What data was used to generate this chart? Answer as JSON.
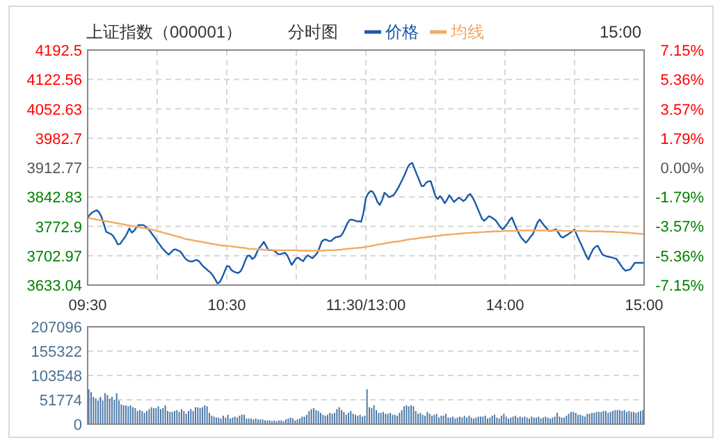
{
  "chart_data": [
    {
      "type": "line",
      "title": "上证指数（000001）",
      "subtitle": "分时图",
      "annotations": [
        "15:00"
      ],
      "legend": "top",
      "grid": true,
      "categories": [
        "09:30",
        null,
        null,
        null,
        null,
        null,
        null,
        null,
        null,
        null,
        null,
        null,
        null,
        null,
        null,
        null,
        null,
        null,
        null,
        null,
        null,
        null,
        null,
        null,
        null,
        null,
        null,
        null,
        null,
        null,
        null,
        null,
        null,
        null,
        null,
        null,
        null,
        null,
        null,
        null,
        null,
        null,
        null,
        null,
        null,
        null,
        null,
        null,
        null,
        null,
        null,
        null,
        null,
        null,
        null,
        null,
        null,
        null,
        null,
        null,
        "10:30",
        null,
        null,
        null,
        null,
        null,
        null,
        null,
        null,
        null,
        null,
        null,
        null,
        null,
        null,
        null,
        null,
        null,
        null,
        null,
        null,
        null,
        null,
        null,
        null,
        null,
        null,
        null,
        null,
        null,
        null,
        null,
        null,
        null,
        null,
        null,
        null,
        null,
        null,
        null,
        null,
        null,
        null,
        null,
        null,
        null,
        null,
        null,
        null,
        null,
        null,
        null,
        null,
        null,
        null,
        null,
        null,
        null,
        null,
        null,
        "11:30/13:00",
        null,
        null,
        null,
        null,
        null,
        null,
        null,
        null,
        null,
        null,
        null,
        null,
        null,
        null,
        null,
        null,
        null,
        null,
        null,
        null,
        null,
        null,
        null,
        null,
        null,
        null,
        null,
        null,
        null,
        null,
        null,
        null,
        null,
        null,
        null,
        null,
        null,
        null,
        null,
        null,
        null,
        null,
        null,
        null,
        null,
        null,
        null,
        null,
        null,
        null,
        null,
        null,
        null,
        null,
        null,
        null,
        null,
        null,
        null,
        "14:00",
        null,
        null,
        null,
        null,
        null,
        null,
        null,
        null,
        null,
        null,
        null,
        null,
        null,
        null,
        null,
        null,
        null,
        null,
        null,
        null,
        null,
        null,
        null,
        null,
        null,
        null,
        null,
        null,
        null,
        null,
        null,
        null,
        null,
        null,
        null,
        null,
        null,
        null,
        null,
        null,
        null,
        null,
        null,
        null,
        null,
        null,
        null,
        null,
        null,
        null,
        null,
        null,
        null,
        null,
        null,
        null,
        null,
        null,
        null,
        "15:00"
      ],
      "ylim": [
        3633.04,
        4192.5
      ],
      "yticks": [
        3633.04,
        3702.97,
        3772.9,
        3842.83,
        3912.77,
        3982.7,
        4052.63,
        4122.56,
        4192.5
      ],
      "y2lim": [
        -7.15,
        7.15
      ],
      "y2ticks": [
        {
          "value": -7.15,
          "label": "-7.15%"
        },
        {
          "value": -5.36,
          "label": "-5.36%"
        },
        {
          "value": -3.57,
          "label": "-3.57%"
        },
        {
          "value": -1.79,
          "label": "-1.79%"
        },
        {
          "value": 0,
          "label": "0.00%"
        },
        {
          "value": 1.79,
          "label": "1.79%"
        },
        {
          "value": 3.57,
          "label": "3.57%"
        },
        {
          "value": 5.36,
          "label": "5.36%"
        },
        {
          "value": 7.15,
          "label": "7.15%"
        }
      ],
      "series": [
        {
          "name": "价格",
          "color": "#1a5aa8",
          "values": [
            3793,
            3801,
            3806,
            3809,
            3811,
            3806,
            3795,
            3778,
            3760,
            3757,
            3755,
            3750,
            3741,
            3730,
            3731,
            3739,
            3746,
            3756,
            3768,
            3758,
            3762,
            3770,
            3776,
            3776,
            3776,
            3772,
            3767,
            3761,
            3753,
            3746,
            3737,
            3730,
            3722,
            3716,
            3710,
            3706,
            3711,
            3717,
            3718,
            3715,
            3713,
            3705,
            3697,
            3692,
            3690,
            3689,
            3691,
            3693,
            3690,
            3683,
            3677,
            3672,
            3667,
            3663,
            3656,
            3647,
            3637,
            3640,
            3651,
            3664,
            3678,
            3678,
            3669,
            3665,
            3663,
            3662,
            3666,
            3677,
            3692,
            3703,
            3703,
            3695,
            3699,
            3711,
            3721,
            3728,
            3736,
            3726,
            3716,
            3716,
            3716,
            3713,
            3707,
            3706,
            3708,
            3710,
            3705,
            3693,
            3681,
            3689,
            3697,
            3698,
            3693,
            3690,
            3699,
            3704,
            3700,
            3697,
            3703,
            3709,
            3722,
            3737,
            3741,
            3741,
            3738,
            3738,
            3743,
            3747,
            3748,
            3749,
            3756,
            3767,
            3780,
            3788,
            3789,
            3787,
            3785,
            3785,
            3784,
            3806,
            3840,
            3851,
            3857,
            3855,
            3845,
            3831,
            3824,
            3835,
            3853,
            3848,
            3842,
            3845,
            3847,
            3856,
            3865,
            3876,
            3887,
            3899,
            3913,
            3921,
            3924,
            3910,
            3896,
            3883,
            3869,
            3869,
            3877,
            3880,
            3880,
            3862,
            3845,
            3838,
            3845,
            3838,
            3828,
            3836,
            3847,
            3839,
            3831,
            3836,
            3841,
            3838,
            3833,
            3837,
            3846,
            3850,
            3842,
            3831,
            3818,
            3805,
            3792,
            3786,
            3791,
            3797,
            3795,
            3791,
            3787,
            3779,
            3771,
            3766,
            3772,
            3779,
            3788,
            3794,
            3780,
            3767,
            3756,
            3746,
            3740,
            3734,
            3740,
            3748,
            3754,
            3768,
            3782,
            3789,
            3781,
            3774,
            3768,
            3762,
            3762,
            3764,
            3766,
            3758,
            3749,
            3746,
            3750,
            3753,
            3757,
            3761,
            3765,
            3752,
            3740,
            3728,
            3716,
            3703,
            3694,
            3707,
            3718,
            3724,
            3727,
            3716,
            3706,
            3703,
            3701,
            3700,
            3699,
            3697,
            3696,
            3688,
            3680,
            3672,
            3667,
            3669,
            3670,
            3678,
            3686,
            3686,
            3686,
            3686,
            3686
          ]
        },
        {
          "name": "均线",
          "color": "#f2aa62",
          "values": [
            3793,
            3792,
            3791,
            3790,
            3789,
            3788,
            3787,
            3786,
            3785,
            3784,
            3783,
            3782,
            3781,
            3780,
            3779,
            3778,
            3777,
            3776,
            3775,
            3774,
            3773,
            3772,
            3771,
            3770,
            3769,
            3768,
            3767,
            3766,
            3765,
            3763,
            3762,
            3760,
            3759,
            3757,
            3756,
            3754,
            3753,
            3751,
            3750,
            3748,
            3747,
            3745,
            3743,
            3742,
            3741,
            3740,
            3739,
            3738,
            3737,
            3736,
            3735,
            3734,
            3733,
            3732,
            3731,
            3730,
            3729,
            3728,
            3727,
            3727,
            3726,
            3726,
            3725,
            3724,
            3724,
            3723,
            3722,
            3722,
            3721,
            3720,
            3719,
            3719,
            3719,
            3718,
            3718,
            3718,
            3717,
            3717,
            3717,
            3717,
            3716,
            3716,
            3716,
            3716,
            3716,
            3716,
            3716,
            3716,
            3716,
            3716,
            3716,
            3715,
            3715,
            3715,
            3715,
            3715,
            3715,
            3715,
            3715,
            3715,
            3715,
            3715,
            3715,
            3716,
            3716,
            3716,
            3716,
            3716,
            3717,
            3717,
            3718,
            3719,
            3719,
            3720,
            3720,
            3721,
            3721,
            3722,
            3722,
            3723,
            3724,
            3725,
            3726,
            3727,
            3728,
            3729,
            3730,
            3731,
            3732,
            3733,
            3734,
            3735,
            3736,
            3736,
            3737,
            3738,
            3739,
            3740,
            3741,
            3742,
            3743,
            3743,
            3744,
            3745,
            3746,
            3746,
            3747,
            3748,
            3748,
            3749,
            3750,
            3750,
            3751,
            3752,
            3752,
            3753,
            3753,
            3754,
            3754,
            3755,
            3755,
            3756,
            3756,
            3757,
            3757,
            3757,
            3758,
            3758,
            3758,
            3759,
            3759,
            3759,
            3760,
            3760,
            3760,
            3761,
            3761,
            3761,
            3761,
            3762,
            3762,
            3762,
            3762,
            3762,
            3762,
            3762,
            3763,
            3763,
            3763,
            3763,
            3763,
            3763,
            3763,
            3763,
            3763,
            3763,
            3763,
            3763,
            3763,
            3763,
            3763,
            3763,
            3763,
            3763,
            3763,
            3762,
            3762,
            3762,
            3762,
            3762,
            3762,
            3762,
            3762,
            3762,
            3762,
            3762,
            3761,
            3761,
            3761,
            3761,
            3761,
            3761,
            3761,
            3760,
            3760,
            3760,
            3760,
            3760,
            3759,
            3759,
            3759,
            3758,
            3758,
            3758,
            3757,
            3757,
            3756,
            3756,
            3755,
            3755,
            3754
          ]
        }
      ]
    },
    {
      "type": "bar",
      "grid": "y",
      "tick_labels": "y",
      "categories": [
        null,
        null,
        null,
        null,
        null,
        null,
        null,
        null,
        null,
        null,
        null,
        null,
        null,
        null,
        null,
        null,
        null,
        null,
        null,
        null,
        null,
        null,
        null,
        null,
        null,
        null,
        null,
        null,
        null,
        null,
        null,
        null,
        null,
        null,
        null,
        null,
        null,
        null,
        null,
        null,
        null,
        null,
        null,
        null,
        null,
        null,
        null,
        null,
        null,
        null,
        null,
        null,
        null,
        null,
        null,
        null,
        null,
        null,
        null,
        null,
        null,
        null,
        null,
        null,
        null,
        null,
        null,
        null,
        null,
        null,
        null,
        null,
        null,
        null,
        null,
        null,
        null,
        null,
        null,
        null,
        null,
        null,
        null,
        null,
        null,
        null,
        null,
        null,
        null,
        null,
        null,
        null,
        null,
        null,
        null,
        null,
        null,
        null,
        null,
        null,
        null,
        null,
        null,
        null,
        null,
        null,
        null,
        null,
        null,
        null,
        null,
        null,
        null,
        null,
        null,
        null,
        null,
        null,
        null,
        null,
        null,
        null,
        null,
        null,
        null,
        null,
        null,
        null,
        null,
        null,
        null,
        null,
        null,
        null,
        null,
        null,
        null,
        null,
        null,
        null,
        null,
        null,
        null,
        null,
        null,
        null,
        null,
        null,
        null,
        null,
        null,
        null,
        null,
        null,
        null,
        null,
        null,
        null,
        null,
        null,
        null,
        null,
        null,
        null,
        null,
        null,
        null,
        null,
        null,
        null,
        null,
        null,
        null,
        null,
        null,
        null,
        null,
        null,
        null,
        null,
        null,
        null,
        null,
        null,
        null,
        null,
        null,
        null,
        null,
        null,
        null,
        null,
        null,
        null,
        null,
        null,
        null,
        null,
        null,
        null,
        null,
        null,
        null,
        null,
        null,
        null,
        null,
        null,
        null,
        null,
        null,
        null,
        null,
        null,
        null,
        null,
        null,
        null,
        null,
        null,
        null,
        null,
        null,
        null,
        null,
        null,
        null,
        null,
        null,
        null,
        null,
        null,
        null,
        null,
        null,
        null,
        null,
        null,
        null,
        null
      ],
      "ylim": [
        0,
        207096
      ],
      "yticks": [
        0,
        51774,
        103548,
        155322,
        207096
      ],
      "series": [
        {
          "color": "#4f7aa8",
          "values": [
            74000,
            68000,
            58000,
            55000,
            50000,
            58000,
            50000,
            66000,
            62000,
            54000,
            58000,
            52000,
            66000,
            50000,
            42000,
            40000,
            40000,
            38000,
            40000,
            36000,
            34000,
            28000,
            30000,
            28000,
            24000,
            28000,
            32000,
            36000,
            34000,
            34000,
            38000,
            32000,
            34000,
            40000,
            28000,
            26000,
            26000,
            28000,
            30000,
            26000,
            32000,
            28000,
            22000,
            28000,
            32000,
            28000,
            36000,
            36000,
            34000,
            36000,
            40000,
            38000,
            24000,
            18000,
            16000,
            14000,
            14000,
            12000,
            18000,
            14000,
            20000,
            12000,
            14000,
            16000,
            14000,
            18000,
            20000,
            20000,
            12000,
            12000,
            12000,
            10000,
            12000,
            10000,
            10000,
            10000,
            8000,
            8000,
            8000,
            6000,
            8000,
            6000,
            8000,
            8000,
            6000,
            10000,
            12000,
            14000,
            12000,
            8000,
            10000,
            12000,
            16000,
            16000,
            20000,
            28000,
            32000,
            34000,
            30000,
            28000,
            24000,
            20000,
            18000,
            20000,
            24000,
            22000,
            24000,
            32000,
            36000,
            30000,
            26000,
            20000,
            24000,
            28000,
            22000,
            20000,
            18000,
            20000,
            16000,
            18000,
            74000,
            36000,
            34000,
            40000,
            30000,
            24000,
            24000,
            26000,
            22000,
            22000,
            24000,
            20000,
            20000,
            18000,
            24000,
            30000,
            38000,
            40000,
            38000,
            40000,
            38000,
            28000,
            22000,
            24000,
            20000,
            18000,
            26000,
            22000,
            18000,
            20000,
            22000,
            14000,
            18000,
            18000,
            22000,
            14000,
            14000,
            16000,
            12000,
            14000,
            16000,
            14000,
            18000,
            14000,
            18000,
            14000,
            12000,
            14000,
            16000,
            16000,
            16000,
            18000,
            12000,
            14000,
            18000,
            20000,
            14000,
            12000,
            18000,
            22000,
            16000,
            12000,
            14000,
            16000,
            18000,
            14000,
            16000,
            14000,
            16000,
            14000,
            12000,
            16000,
            14000,
            14000,
            16000,
            12000,
            14000,
            16000,
            14000,
            12000,
            14000,
            16000,
            24000,
            16000,
            14000,
            14000,
            18000,
            22000,
            26000,
            26000,
            24000,
            20000,
            20000,
            18000,
            16000,
            22000,
            22000,
            24000,
            24000,
            26000,
            26000,
            26000,
            28000,
            28000,
            24000,
            26000,
            28000,
            30000,
            30000,
            30000,
            28000,
            30000,
            26000,
            28000,
            26000,
            26000,
            24000,
            26000,
            28000,
            30000
          ]
        }
      ]
    }
  ]
}
